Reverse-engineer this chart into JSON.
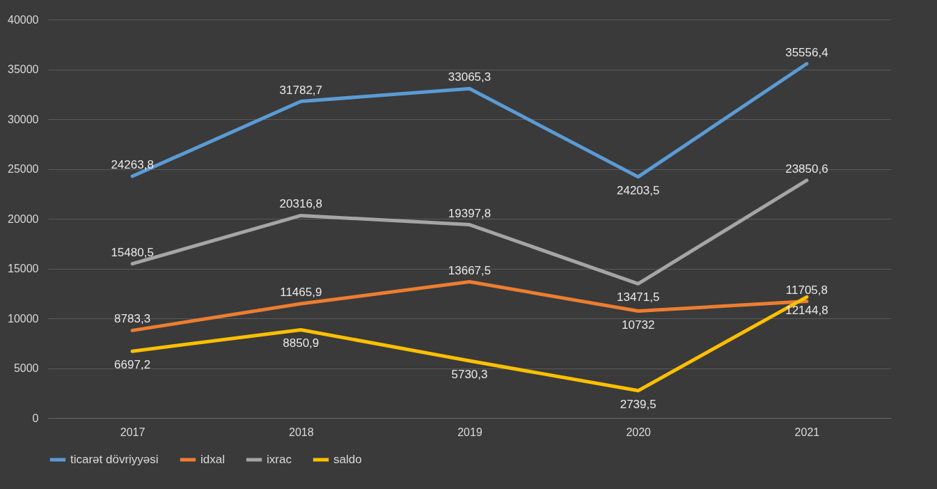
{
  "chart_data": {
    "type": "line",
    "categories": [
      "2017",
      "2018",
      "2019",
      "2020",
      "2021"
    ],
    "series": [
      {
        "name": "ticarət dövriyyəsi",
        "color": "#5b9bd5",
        "values": [
          24263.8,
          31782.7,
          33065.3,
          24203.5,
          35556.4
        ],
        "value_labels": [
          "24263,8",
          "31782,7",
          "33065,3",
          "24203,5",
          "35556,4"
        ]
      },
      {
        "name": "idxal",
        "color": "#ed7d31",
        "values": [
          8783.3,
          11465.9,
          13667.5,
          10732,
          11705.8
        ],
        "value_labels": [
          "8783,3",
          "11465,9",
          "13667,5",
          "10732",
          "11705,8"
        ]
      },
      {
        "name": "ixrac",
        "color": "#a5a5a5",
        "values": [
          15480.5,
          20316.8,
          19397.8,
          13471.5,
          23850.6
        ],
        "value_labels": [
          "15480,5",
          "20316,8",
          "19397,8",
          "13471,5",
          "23850,6"
        ]
      },
      {
        "name": "saldo",
        "color": "#ffc000",
        "values": [
          6697.2,
          8850.9,
          5730.3,
          2739.5,
          12144.8
        ],
        "value_labels": [
          "6697,2",
          "8850,9",
          "5730,3",
          "2739,5",
          "12144,8"
        ]
      }
    ],
    "ylim": [
      0,
      40000
    ],
    "yticks": [
      0,
      5000,
      10000,
      15000,
      20000,
      25000,
      30000,
      35000,
      40000
    ],
    "grid": "y",
    "legend": "bottom",
    "marker": "none",
    "line_style": "solid"
  }
}
